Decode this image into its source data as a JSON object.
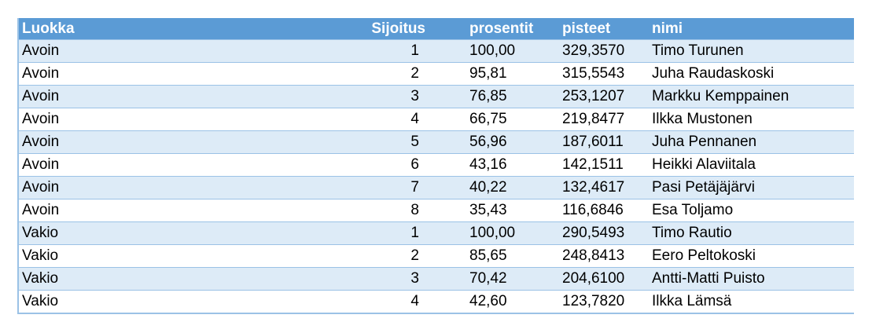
{
  "table": {
    "headers": {
      "luokka": "Luokka",
      "sijoitus": "Sijoitus",
      "prosentit": "prosentit",
      "pisteet": "pisteet",
      "nimi": "nimi"
    },
    "rows": [
      {
        "luokka": "Avoin",
        "sijoitus": "1",
        "prosentit": "100,00",
        "pisteet": "329,3570",
        "nimi": "Timo Turunen"
      },
      {
        "luokka": "Avoin",
        "sijoitus": "2",
        "prosentit": "95,81",
        "pisteet": "315,5543",
        "nimi": "Juha Raudaskoski"
      },
      {
        "luokka": "Avoin",
        "sijoitus": "3",
        "prosentit": "76,85",
        "pisteet": "253,1207",
        "nimi": "Markku Kemppainen"
      },
      {
        "luokka": "Avoin",
        "sijoitus": "4",
        "prosentit": "66,75",
        "pisteet": "219,8477",
        "nimi": "Ilkka Mustonen"
      },
      {
        "luokka": "Avoin",
        "sijoitus": "5",
        "prosentit": "56,96",
        "pisteet": "187,6011",
        "nimi": "Juha Pennanen"
      },
      {
        "luokka": "Avoin",
        "sijoitus": "6",
        "prosentit": "43,16",
        "pisteet": "142,1511",
        "nimi": "Heikki Alaviitala"
      },
      {
        "luokka": "Avoin",
        "sijoitus": "7",
        "prosentit": "40,22",
        "pisteet": "132,4617",
        "nimi": "Pasi Petäjäjärvi"
      },
      {
        "luokka": "Avoin",
        "sijoitus": "8",
        "prosentit": "35,43",
        "pisteet": "116,6846",
        "nimi": "Esa Toljamo"
      },
      {
        "luokka": "Vakio",
        "sijoitus": "1",
        "prosentit": "100,00",
        "pisteet": "290,5493",
        "nimi": "Timo Rautio"
      },
      {
        "luokka": "Vakio",
        "sijoitus": "2",
        "prosentit": "85,65",
        "pisteet": "248,8413",
        "nimi": "Eero Peltokoski"
      },
      {
        "luokka": "Vakio",
        "sijoitus": "3",
        "prosentit": "70,42",
        "pisteet": "204,6100",
        "nimi": "Antti-Matti Puisto"
      },
      {
        "luokka": "Vakio",
        "sijoitus": "4",
        "prosentit": "42,60",
        "pisteet": "123,7820",
        "nimi": "Ilkka Lämsä"
      }
    ]
  },
  "colors": {
    "header_bg": "#5b9bd5",
    "band_bg": "#ddebf7",
    "border": "#9bc2e6"
  }
}
